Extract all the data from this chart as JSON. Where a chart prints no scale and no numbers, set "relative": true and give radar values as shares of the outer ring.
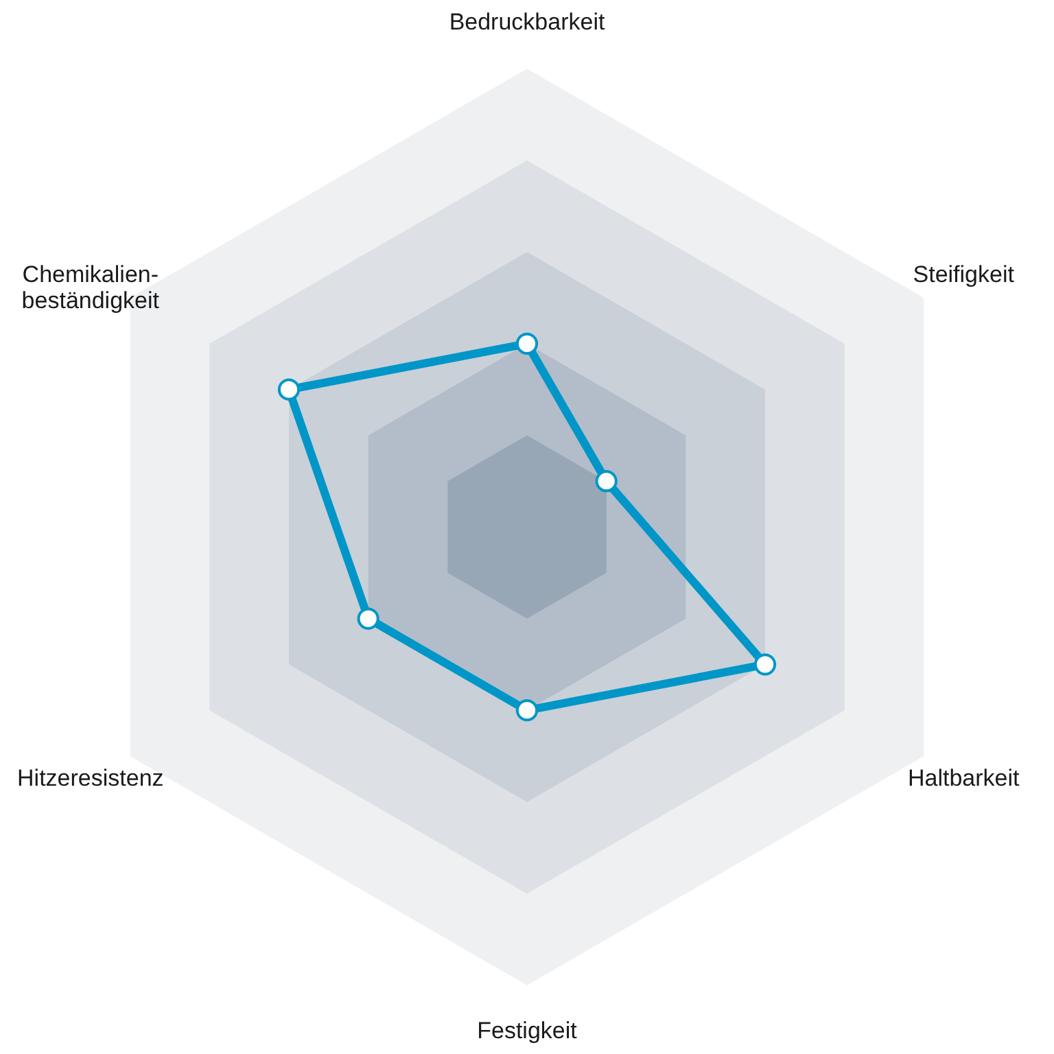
{
  "chart_data": {
    "type": "radar",
    "relative": true,
    "grid": true,
    "marker": "circle",
    "line_style": "solid",
    "categories": [
      "Bedruckbarkeit",
      "Steifigkeit",
      "Haltbarkeit",
      "Festigkeit",
      "Hitzeresistenz",
      "Chemikalien- beständigkeit"
    ],
    "series": [
      {
        "color": "#0096c8",
        "values": [
          0.4,
          0.2,
          0.6,
          0.4,
          0.4,
          0.6
        ]
      }
    ]
  }
}
